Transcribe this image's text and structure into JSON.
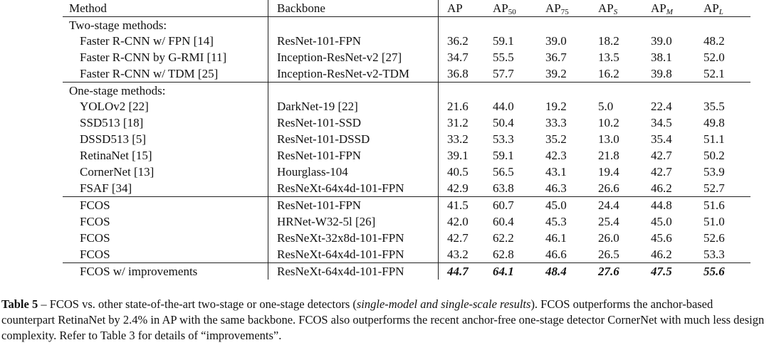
{
  "header": {
    "method": "Method",
    "backbone": "Backbone",
    "ap": "AP",
    "ap50": "50",
    "ap75": "75",
    "aps": "S",
    "apm": "M",
    "apl": "L"
  },
  "sections": {
    "two_stage": "Two-stage methods:",
    "one_stage": "One-stage methods:"
  },
  "two_stage_rows": [
    {
      "method": "Faster R-CNN w/ FPN [14]",
      "backbone": "ResNet-101-FPN",
      "ap": "36.2",
      "ap50": "59.1",
      "ap75": "39.0",
      "aps": "18.2",
      "apm": "39.0",
      "apl": "48.2"
    },
    {
      "method": "Faster R-CNN by G-RMI [11]",
      "backbone": "Inception-ResNet-v2 [27]",
      "ap": "34.7",
      "ap50": "55.5",
      "ap75": "36.7",
      "aps": "13.5",
      "apm": "38.1",
      "apl": "52.0"
    },
    {
      "method": "Faster R-CNN w/ TDM [25]",
      "backbone": "Inception-ResNet-v2-TDM",
      "ap": "36.8",
      "ap50": "57.7",
      "ap75": "39.2",
      "aps": "16.2",
      "apm": "39.8",
      "apl": "52.1"
    }
  ],
  "one_stage_rows": [
    {
      "method": "YOLOv2 [22]",
      "backbone": "DarkNet-19 [22]",
      "ap": "21.6",
      "ap50": "44.0",
      "ap75": "19.2",
      "aps": "5.0",
      "apm": "22.4",
      "apl": "35.5"
    },
    {
      "method": "SSD513 [18]",
      "backbone": "ResNet-101-SSD",
      "ap": "31.2",
      "ap50": "50.4",
      "ap75": "33.3",
      "aps": "10.2",
      "apm": "34.5",
      "apl": "49.8"
    },
    {
      "method": "DSSD513 [5]",
      "backbone": "ResNet-101-DSSD",
      "ap": "33.2",
      "ap50": "53.3",
      "ap75": "35.2",
      "aps": "13.0",
      "apm": "35.4",
      "apl": "51.1"
    },
    {
      "method": "RetinaNet [15]",
      "backbone": "ResNet-101-FPN",
      "ap": "39.1",
      "ap50": "59.1",
      "ap75": "42.3",
      "aps": "21.8",
      "apm": "42.7",
      "apl": "50.2"
    },
    {
      "method": "CornerNet [13]",
      "backbone": "Hourglass-104",
      "ap": "40.5",
      "ap50": "56.5",
      "ap75": "43.1",
      "aps": "19.4",
      "apm": "42.7",
      "apl": "53.9"
    },
    {
      "method": "FSAF [34]",
      "backbone": "ResNeXt-64x4d-101-FPN",
      "ap": "42.9",
      "ap50": "63.8",
      "ap75": "46.3",
      "aps": "26.6",
      "apm": "46.2",
      "apl": "52.7"
    }
  ],
  "fcos_rows": [
    {
      "method": "FCOS",
      "backbone": "ResNet-101-FPN",
      "ap": "41.5",
      "ap50": "60.7",
      "ap75": "45.0",
      "aps": "24.4",
      "apm": "44.8",
      "apl": "51.6"
    },
    {
      "method": "FCOS",
      "backbone": "HRNet-W32-5l [26]",
      "ap": "42.0",
      "ap50": "60.4",
      "ap75": "45.3",
      "aps": "25.4",
      "apm": "45.0",
      "apl": "51.0"
    },
    {
      "method": "FCOS",
      "backbone": "ResNeXt-32x8d-101-FPN",
      "ap": "42.7",
      "ap50": "62.2",
      "ap75": "46.1",
      "aps": "26.0",
      "apm": "45.6",
      "apl": "52.6"
    },
    {
      "method": "FCOS",
      "backbone": "ResNeXt-64x4d-101-FPN",
      "ap": "43.2",
      "ap50": "62.8",
      "ap75": "46.6",
      "aps": "26.5",
      "apm": "46.2",
      "apl": "53.3"
    }
  ],
  "improved_row": {
    "method": "FCOS w/ improvements",
    "backbone": "ResNeXt-64x4d-101-FPN",
    "ap": "44.7",
    "ap50": "64.1",
    "ap75": "48.4",
    "aps": "27.6",
    "apm": "47.5",
    "apl": "55.6"
  },
  "caption": {
    "label": "Table 5",
    "dash": " – ",
    "text1": "FCOS vs. other state-of-the-art two-stage or one-stage detectors (",
    "italic": "single-model and single-scale results",
    "text2": "). FCOS outperforms the anchor-based counterpart RetinaNet by 2.4% in AP with the same backbone. FCOS also outperforms the recent anchor-free one-stage detector CornerNet with much less design complexity. Refer to Table 3 for details of “improvements”."
  }
}
